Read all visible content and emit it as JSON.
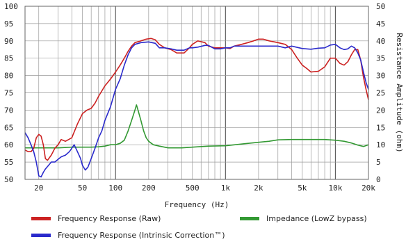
{
  "chart_data": {
    "type": "line",
    "xlabel": "Frequency (Hz)",
    "ylabel_right": "Resistance Amplitude (ohm)",
    "x_scale": "log",
    "xlim": [
      15,
      20000
    ],
    "ylim_left": [
      50,
      100
    ],
    "ylim_right": [
      0,
      50
    ],
    "x_ticks": [
      {
        "v": 20,
        "label": "20"
      },
      {
        "v": 50,
        "label": "50"
      },
      {
        "v": 100,
        "label": "100"
      },
      {
        "v": 200,
        "label": "200"
      },
      {
        "v": 500,
        "label": "500"
      },
      {
        "v": 1000,
        "label": "1k"
      },
      {
        "v": 2000,
        "label": "2k"
      },
      {
        "v": 5000,
        "label": "5k"
      },
      {
        "v": 10000,
        "label": "10k"
      },
      {
        "v": 20000,
        "label": "20k"
      }
    ],
    "y_left_ticks": [
      "50",
      "55",
      "60",
      "65",
      "70",
      "75",
      "80",
      "85",
      "90",
      "95",
      "100"
    ],
    "y_right_ticks": [
      "0",
      "5",
      "10",
      "15",
      "20",
      "25",
      "30",
      "35",
      "40",
      "45",
      "50"
    ],
    "grid": true,
    "legend_position": "bottom",
    "series": [
      {
        "name": "Frequency Response (Raw)",
        "color": "#cc2222",
        "axis": "left",
        "points": [
          [
            15,
            58.5
          ],
          [
            16,
            58
          ],
          [
            17,
            58
          ],
          [
            18,
            59
          ],
          [
            19,
            62
          ],
          [
            20,
            63
          ],
          [
            21,
            62.5
          ],
          [
            22,
            60
          ],
          [
            23,
            56
          ],
          [
            24,
            55.5
          ],
          [
            26,
            57
          ],
          [
            28,
            59
          ],
          [
            30,
            60
          ],
          [
            32,
            61.5
          ],
          [
            35,
            61
          ],
          [
            40,
            62
          ],
          [
            45,
            66
          ],
          [
            50,
            69
          ],
          [
            55,
            70
          ],
          [
            60,
            70.5
          ],
          [
            65,
            72
          ],
          [
            70,
            74
          ],
          [
            80,
            77
          ],
          [
            90,
            79
          ],
          [
            100,
            81
          ],
          [
            110,
            83
          ],
          [
            120,
            85
          ],
          [
            130,
            87
          ],
          [
            140,
            88.5
          ],
          [
            150,
            89.5
          ],
          [
            170,
            90
          ],
          [
            190,
            90.5
          ],
          [
            210,
            90.7
          ],
          [
            230,
            90.3
          ],
          [
            250,
            89
          ],
          [
            280,
            88
          ],
          [
            320,
            87.5
          ],
          [
            360,
            86.5
          ],
          [
            420,
            86.5
          ],
          [
            470,
            88
          ],
          [
            500,
            89
          ],
          [
            560,
            90
          ],
          [
            650,
            89.5
          ],
          [
            700,
            88.5
          ],
          [
            800,
            88
          ],
          [
            900,
            88
          ],
          [
            1000,
            88
          ],
          [
            1100,
            87.8
          ],
          [
            1200,
            88.5
          ],
          [
            1400,
            89
          ],
          [
            1600,
            89.5
          ],
          [
            1800,
            90
          ],
          [
            2000,
            90.5
          ],
          [
            2200,
            90.5
          ],
          [
            2500,
            90
          ],
          [
            3000,
            89.5
          ],
          [
            3500,
            89
          ],
          [
            4000,
            87.5
          ],
          [
            4500,
            85
          ],
          [
            5000,
            83
          ],
          [
            5500,
            82
          ],
          [
            6000,
            81
          ],
          [
            7000,
            81.2
          ],
          [
            8000,
            82.5
          ],
          [
            9000,
            85
          ],
          [
            10000,
            85
          ],
          [
            11000,
            83.5
          ],
          [
            12000,
            83
          ],
          [
            13000,
            84
          ],
          [
            14000,
            86
          ],
          [
            15000,
            87.5
          ],
          [
            16000,
            87.5
          ],
          [
            17000,
            84.5
          ],
          [
            18000,
            79.5
          ],
          [
            19000,
            76
          ],
          [
            20000,
            73
          ]
        ]
      },
      {
        "name": "Frequency Response (Intrinsic Correction™)",
        "color": "#2a2acc",
        "axis": "left",
        "points": [
          [
            15,
            63.5
          ],
          [
            16,
            62
          ],
          [
            17,
            60
          ],
          [
            18,
            58
          ],
          [
            19,
            55
          ],
          [
            20,
            51
          ],
          [
            21,
            50.7
          ],
          [
            22,
            52
          ],
          [
            23,
            53
          ],
          [
            24,
            53.7
          ],
          [
            26,
            55
          ],
          [
            28,
            55
          ],
          [
            30,
            55.8
          ],
          [
            32,
            56.5
          ],
          [
            35,
            57
          ],
          [
            38,
            58
          ],
          [
            40,
            59
          ],
          [
            42,
            60
          ],
          [
            45,
            58
          ],
          [
            48,
            56
          ],
          [
            50,
            54
          ],
          [
            53,
            52.7
          ],
          [
            56,
            53.5
          ],
          [
            60,
            56
          ],
          [
            65,
            59
          ],
          [
            70,
            62
          ],
          [
            75,
            64
          ],
          [
            80,
            67
          ],
          [
            90,
            71
          ],
          [
            100,
            76
          ],
          [
            110,
            79
          ],
          [
            120,
            83
          ],
          [
            130,
            86
          ],
          [
            140,
            88
          ],
          [
            150,
            89
          ],
          [
            170,
            89.5
          ],
          [
            200,
            89.7
          ],
          [
            230,
            89.3
          ],
          [
            250,
            88
          ],
          [
            280,
            88
          ],
          [
            320,
            87.7
          ],
          [
            360,
            87.3
          ],
          [
            420,
            87.3
          ],
          [
            470,
            88
          ],
          [
            500,
            88
          ],
          [
            560,
            88.2
          ],
          [
            650,
            88.7
          ],
          [
            700,
            88.7
          ],
          [
            800,
            87.7
          ],
          [
            900,
            87.7
          ],
          [
            1000,
            88
          ],
          [
            1100,
            88
          ],
          [
            1200,
            88.5
          ],
          [
            1400,
            88.5
          ],
          [
            1600,
            88.5
          ],
          [
            1800,
            88.5
          ],
          [
            2000,
            88.5
          ],
          [
            2500,
            88.5
          ],
          [
            3000,
            88.5
          ],
          [
            3500,
            88
          ],
          [
            4000,
            88.5
          ],
          [
            5000,
            87.8
          ],
          [
            6000,
            87.6
          ],
          [
            7000,
            87.9
          ],
          [
            8000,
            88
          ],
          [
            9000,
            88.8
          ],
          [
            10000,
            89
          ],
          [
            11000,
            88
          ],
          [
            12000,
            87.5
          ],
          [
            13000,
            87.7
          ],
          [
            14000,
            88.5
          ],
          [
            15000,
            88
          ],
          [
            16000,
            86.5
          ],
          [
            17000,
            84.5
          ],
          [
            18000,
            81
          ],
          [
            19000,
            78
          ],
          [
            20000,
            76
          ]
        ]
      },
      {
        "name": "Impedance (LowZ bypass)",
        "color": "#339933",
        "axis": "right",
        "points": [
          [
            15,
            9.1
          ],
          [
            20,
            9.1
          ],
          [
            30,
            9.1
          ],
          [
            40,
            9.3
          ],
          [
            60,
            9.3
          ],
          [
            70,
            9.4
          ],
          [
            80,
            9.6
          ],
          [
            90,
            10
          ],
          [
            100,
            10
          ],
          [
            110,
            10.4
          ],
          [
            120,
            11.3
          ],
          [
            130,
            14
          ],
          [
            140,
            17
          ],
          [
            150,
            20
          ],
          [
            155,
            21.5
          ],
          [
            160,
            20
          ],
          [
            170,
            17
          ],
          [
            180,
            14
          ],
          [
            190,
            12
          ],
          [
            200,
            11
          ],
          [
            220,
            10
          ],
          [
            250,
            9.6
          ],
          [
            300,
            9.1
          ],
          [
            400,
            9.1
          ],
          [
            500,
            9.3
          ],
          [
            700,
            9.6
          ],
          [
            1000,
            9.7
          ],
          [
            1500,
            10.3
          ],
          [
            2000,
            10.7
          ],
          [
            2500,
            11
          ],
          [
            3000,
            11.4
          ],
          [
            4000,
            11.5
          ],
          [
            5000,
            11.5
          ],
          [
            6000,
            11.5
          ],
          [
            8000,
            11.5
          ],
          [
            10000,
            11.3
          ],
          [
            12000,
            11
          ],
          [
            14000,
            10.5
          ],
          [
            16000,
            9.9
          ],
          [
            18000,
            9.5
          ],
          [
            20000,
            10
          ]
        ]
      }
    ]
  }
}
